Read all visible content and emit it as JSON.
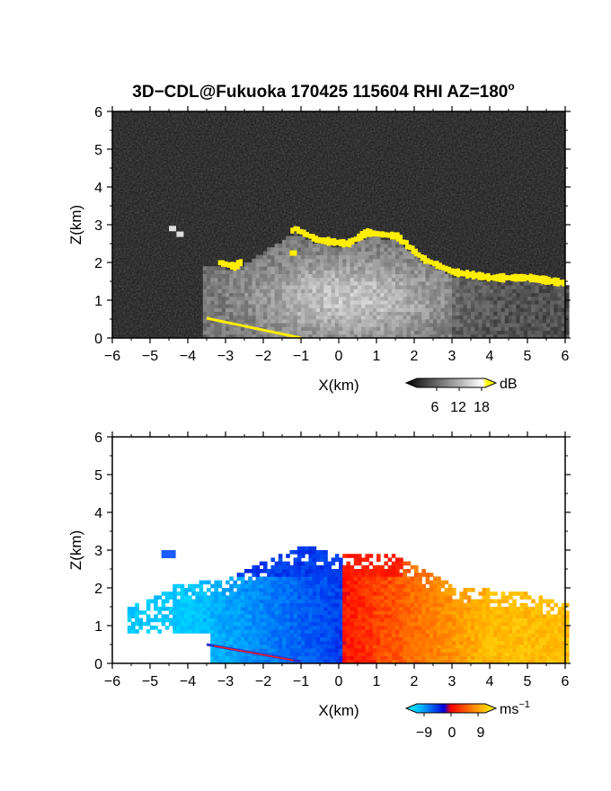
{
  "chart_data": [
    {
      "type": "heatmap",
      "panel": "backscatter",
      "title_main": "3D−CDL@Fukuoka 170425 115604 RHI AZ=180",
      "title_sup": "o",
      "xlabel": "X(km)",
      "ylabel": "Z(km)",
      "xlim": [
        -6,
        6
      ],
      "ylim": [
        0,
        6
      ],
      "x_ticks": [
        "−6",
        "−5",
        "−4",
        "−3",
        "−2",
        "−1",
        "0",
        "1",
        "2",
        "3",
        "4",
        "5",
        "6"
      ],
      "y_ticks": [
        "0",
        "1",
        "2",
        "3",
        "4",
        "5",
        "6"
      ],
      "colorbar": {
        "unit": "dB",
        "ticks": [
          "6",
          "12",
          "18"
        ],
        "range": [
          0,
          20
        ],
        "colors": [
          "#000000",
          "#ffffff",
          "#ffff00"
        ]
      },
      "features": {
        "cloud_top_height_km": [
          [
            -3.2,
            2.0
          ],
          [
            -2.8,
            1.9
          ],
          [
            -1.2,
            2.9
          ],
          [
            -0.6,
            2.6
          ],
          [
            0.2,
            2.5
          ],
          [
            0.7,
            2.8
          ],
          [
            1.5,
            2.7
          ],
          [
            2.2,
            2.1
          ],
          [
            3.0,
            1.75
          ],
          [
            4.0,
            1.6
          ],
          [
            5.0,
            1.6
          ],
          [
            6.0,
            1.45
          ]
        ],
        "ground_echo_line_km": [
          [
            -3.5,
            0.5
          ],
          [
            -1.0,
            0.0
          ]
        ]
      },
      "grid": false,
      "legend": "none"
    },
    {
      "type": "heatmap",
      "panel": "doppler_velocity",
      "xlabel": "X(km)",
      "ylabel": "Z(km)",
      "xlim": [
        -6,
        6
      ],
      "ylim": [
        0,
        6
      ],
      "x_ticks": [
        "−6",
        "−5",
        "−4",
        "−3",
        "−2",
        "−1",
        "0",
        "1",
        "2",
        "3",
        "4",
        "5",
        "6"
      ],
      "y_ticks": [
        "0",
        "1",
        "2",
        "3",
        "4",
        "5",
        "6"
      ],
      "colorbar": {
        "unit": "ms",
        "unit_sup": "−1",
        "ticks": [
          "−9",
          "0",
          "9"
        ],
        "range": [
          -12,
          12
        ]
      },
      "features": {
        "left_region_velocity_ms": -6,
        "right_region_velocity_ms": 7,
        "echo_top_height_km": [
          [
            -5.5,
            1.5
          ],
          [
            -4.5,
            2.0
          ],
          [
            -3.0,
            2.2
          ],
          [
            -1.0,
            3.1
          ],
          [
            0.0,
            2.8
          ],
          [
            1.0,
            2.9
          ],
          [
            1.5,
            2.8
          ],
          [
            3.0,
            2.0
          ],
          [
            5.0,
            1.8
          ],
          [
            6.0,
            1.5
          ]
        ]
      },
      "grid": false,
      "legend": "none"
    }
  ]
}
